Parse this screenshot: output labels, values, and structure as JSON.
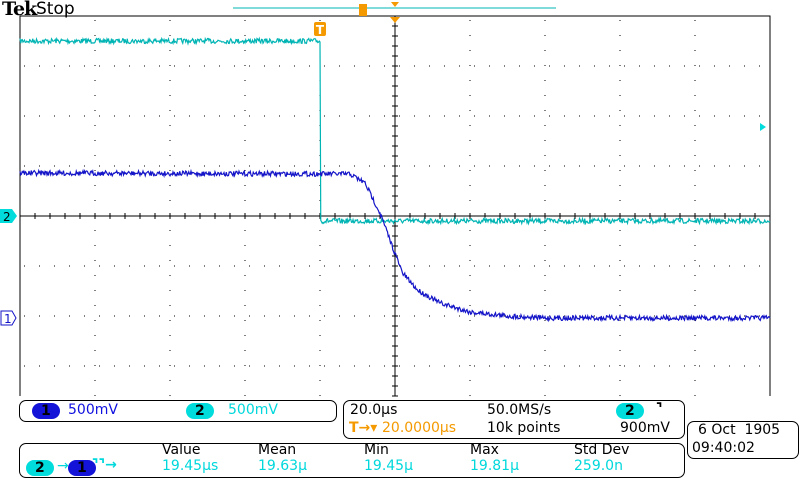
{
  "header": {
    "brand": "Tek",
    "status": "Stop"
  },
  "colors": {
    "ch1": "#1414c8",
    "ch2": "#00b4b4",
    "trigger": "#f49a00",
    "grid": "#000000"
  },
  "channels": [
    {
      "id": "1",
      "scale": "500mV"
    },
    {
      "id": "2",
      "scale": "500mV"
    }
  ],
  "timebase": {
    "scale": "20.0µs",
    "trigger_position": "20.0000µs",
    "sample_rate": "50.0MS/s",
    "record_length": "10k points",
    "trigger_source": "2",
    "trigger_slope_icon": "falling-edge-icon",
    "trigger_level": "900mV"
  },
  "measurement": {
    "source_a": "2",
    "source_b": "1",
    "type_icon": "delay-fall-fall-icon",
    "headers": [
      "Value",
      "Mean",
      "Min",
      "Max",
      "Std Dev"
    ],
    "values": [
      "19.45µs",
      "19.63µ",
      "19.45µ",
      "19.81µ",
      "259.0n"
    ]
  },
  "datetime": {
    "date": "6 Oct  1905",
    "time": "09:40:02"
  },
  "markers": {
    "trigger": "T",
    "ch1": "1",
    "ch2": "2"
  },
  "chart_data": {
    "type": "line",
    "xlabel": "",
    "ylabel": "",
    "x_units": "µs",
    "y_units": "V",
    "xlim": [
      -80,
      120
    ],
    "divisions": {
      "x": 10,
      "y": 8
    },
    "grid": true,
    "series": [
      {
        "name": "2",
        "x": [
          -80,
          0,
          0.2,
          120
        ],
        "y": [
          1.75,
          1.75,
          -0.05,
          -0.05
        ]
      },
      {
        "name": "1",
        "x": [
          -80,
          8,
          12,
          16,
          19.45,
          22,
          26,
          32,
          40,
          50,
          60,
          120
        ],
        "y": [
          1.45,
          1.44,
          1.35,
          1.05,
          0.7,
          0.45,
          0.28,
          0.15,
          0.06,
          0.02,
          0.0,
          0.0
        ]
      }
    ]
  }
}
